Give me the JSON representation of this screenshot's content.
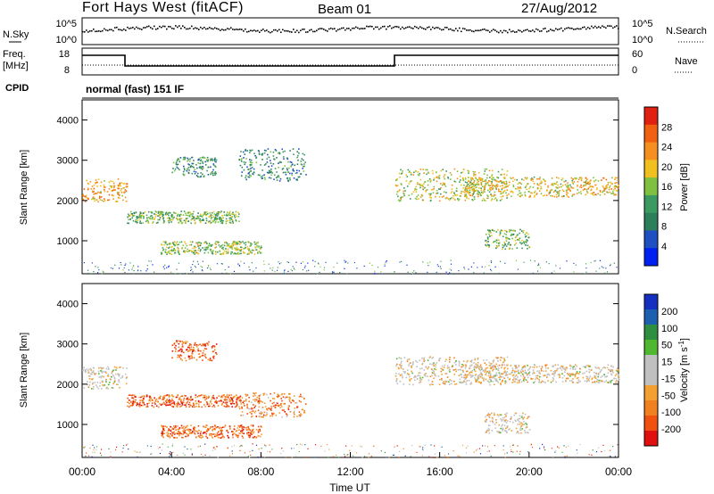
{
  "header": {
    "station": "Fort Hays West (fitACF)",
    "beam": "Beam 01",
    "date": "27/Aug/2012"
  },
  "noise_panel": {
    "left_label": "N.Sky",
    "right_label": "N.Search",
    "left_ticks": [
      "10^5",
      "10^0"
    ],
    "right_ticks": [
      "10^5",
      "10^0"
    ]
  },
  "freq_panel": {
    "left_label_1": "Freq.",
    "left_label_2": "[MHz]",
    "left_ticks": [
      "18",
      "8"
    ],
    "right_label": "Nave",
    "right_ticks": [
      "60",
      "0"
    ]
  },
  "cpid": {
    "label": "CPID",
    "text": "normal (fast) 151 IF"
  },
  "colors": {
    "power_scale": [
      "#0020f0",
      "#1f4fc0",
      "#2c7f5a",
      "#3a9a60",
      "#7fc040",
      "#f0c020",
      "#f59020",
      "#f06010",
      "#e02010"
    ],
    "velocity_scale": [
      "#e01010",
      "#f05010",
      "#f08020",
      "#f4a030",
      "#c0c0c0",
      "#c0c0c0",
      "#4fb830",
      "#2f8f40",
      "#1f5fb0",
      "#1530c0"
    ]
  },
  "chart_data": [
    {
      "type": "heatmap",
      "title": "Power",
      "ylabel": "Slant Range [km]",
      "ylim": [
        180,
        4500
      ],
      "y_ticks": [
        "1000",
        "2000",
        "3000",
        "4000"
      ],
      "colorbar_label": "Power [dB]",
      "colorbar_ticks": [
        "28",
        "24",
        "20",
        "16",
        "12",
        "8",
        "4"
      ],
      "scatter_bands": [
        {
          "t": [
            0,
            2
          ],
          "r": [
            1980,
            2550
          ],
          "level": 0.7
        },
        {
          "t": [
            2,
            7
          ],
          "r": [
            1450,
            1750
          ],
          "level": 0.45
        },
        {
          "t": [
            3.5,
            8
          ],
          "r": [
            680,
            1000
          ],
          "level": 0.5
        },
        {
          "t": [
            4,
            6
          ],
          "r": [
            2600,
            3100
          ],
          "level": 0.35
        },
        {
          "t": [
            7,
            10
          ],
          "r": [
            2500,
            3300
          ],
          "level": 0.3
        },
        {
          "t": [
            14,
            19
          ],
          "r": [
            2000,
            2800
          ],
          "level": 0.55
        },
        {
          "t": [
            17,
            22
          ],
          "r": [
            2100,
            2600
          ],
          "level": 0.6
        },
        {
          "t": [
            18,
            20
          ],
          "r": [
            800,
            1300
          ],
          "level": 0.45
        },
        {
          "t": [
            22,
            24
          ],
          "r": [
            2150,
            2600
          ],
          "level": 0.65
        }
      ]
    },
    {
      "type": "heatmap",
      "title": "Velocity",
      "ylabel": "Slant Range [km]",
      "xlabel": "Time UT",
      "x_ticks": [
        "00:00",
        "04:00",
        "08:00",
        "12:00",
        "16:00",
        "20:00",
        "00:00"
      ],
      "ylim": [
        180,
        4500
      ],
      "y_ticks": [
        "1000",
        "2000",
        "3000",
        "4000"
      ],
      "colorbar_label": "Velocity [m s",
      "colorbar_sup": "-1",
      "colorbar_end": "]",
      "colorbar_ticks": [
        "200",
        "100",
        "50",
        "15",
        "-15",
        "-50",
        "-100",
        "-200"
      ],
      "scatter_bands": [
        {
          "t": [
            0,
            2
          ],
          "r": [
            1900,
            2450
          ],
          "level": 0.45
        },
        {
          "t": [
            2,
            7
          ],
          "r": [
            1450,
            1750
          ],
          "level": 0.2
        },
        {
          "t": [
            3.5,
            8
          ],
          "r": [
            680,
            1000
          ],
          "level": 0.2
        },
        {
          "t": [
            4,
            6
          ],
          "r": [
            2600,
            3100
          ],
          "level": 0.2
        },
        {
          "t": [
            7,
            10
          ],
          "r": [
            1200,
            1800
          ],
          "level": 0.25
        },
        {
          "t": [
            14,
            19
          ],
          "r": [
            2000,
            2700
          ],
          "level": 0.45
        },
        {
          "t": [
            17,
            22
          ],
          "r": [
            2050,
            2500
          ],
          "level": 0.45
        },
        {
          "t": [
            18,
            20
          ],
          "r": [
            800,
            1300
          ],
          "level": 0.45
        },
        {
          "t": [
            22,
            24
          ],
          "r": [
            2050,
            2500
          ],
          "level": 0.45
        }
      ]
    }
  ]
}
